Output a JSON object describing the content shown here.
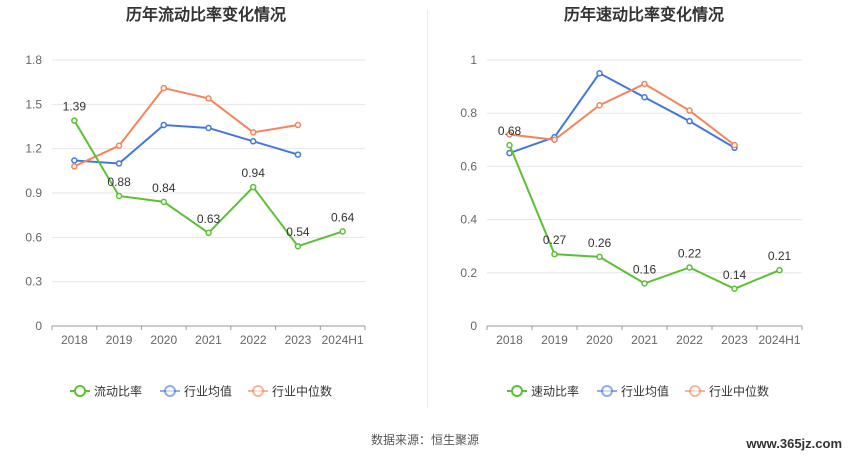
{
  "source_text": "数据来源：恒生聚源",
  "watermark": "www.365jz.com",
  "chart_data": [
    {
      "type": "line",
      "title": "历年流动比率变化情况",
      "categories": [
        "2018",
        "2019",
        "2020",
        "2021",
        "2022",
        "2023",
        "2024H1"
      ],
      "y_ticks": [
        "0",
        "0.3",
        "0.6",
        "0.9",
        "1.2",
        "1.5",
        "1.8"
      ],
      "ylim": [
        0,
        1.8
      ],
      "grid": true,
      "legend_position": "bottom",
      "series": [
        {
          "name": "流动比率",
          "color": "#5cc035",
          "values": [
            1.39,
            0.88,
            0.84,
            0.63,
            0.94,
            0.54,
            0.64
          ],
          "labels": [
            "1.39",
            "0.88",
            "0.84",
            "0.63",
            "0.94",
            "0.54",
            "0.64"
          ]
        },
        {
          "name": "行业均值",
          "color": "#4477dd",
          "values": [
            1.12,
            1.1,
            1.36,
            1.34,
            1.25,
            1.16,
            null
          ]
        },
        {
          "name": "行业中位数",
          "color": "#f5845a",
          "values": [
            1.08,
            1.22,
            1.61,
            1.54,
            1.31,
            1.36,
            null
          ]
        }
      ]
    },
    {
      "type": "line",
      "title": "历年速动比率变化情况",
      "categories": [
        "2018",
        "2019",
        "2020",
        "2021",
        "2022",
        "2023",
        "2024H1"
      ],
      "y_ticks": [
        "0",
        "0.2",
        "0.4",
        "0.6",
        "0.8",
        "1"
      ],
      "ylim": [
        0,
        1
      ],
      "grid": true,
      "legend_position": "bottom",
      "series": [
        {
          "name": "速动比率",
          "color": "#5cc035",
          "values": [
            0.68,
            0.27,
            0.26,
            0.16,
            0.22,
            0.14,
            0.21
          ],
          "labels": [
            "0.68",
            "0.27",
            "0.26",
            "0.16",
            "0.22",
            "0.14",
            "0.21"
          ]
        },
        {
          "name": "行业均值",
          "color": "#4477dd",
          "values": [
            0.65,
            0.71,
            0.95,
            0.86,
            0.77,
            0.67,
            null
          ]
        },
        {
          "name": "行业中位数",
          "color": "#f5845a",
          "values": [
            0.72,
            0.7,
            0.83,
            0.91,
            0.81,
            0.68,
            null
          ]
        }
      ]
    }
  ]
}
